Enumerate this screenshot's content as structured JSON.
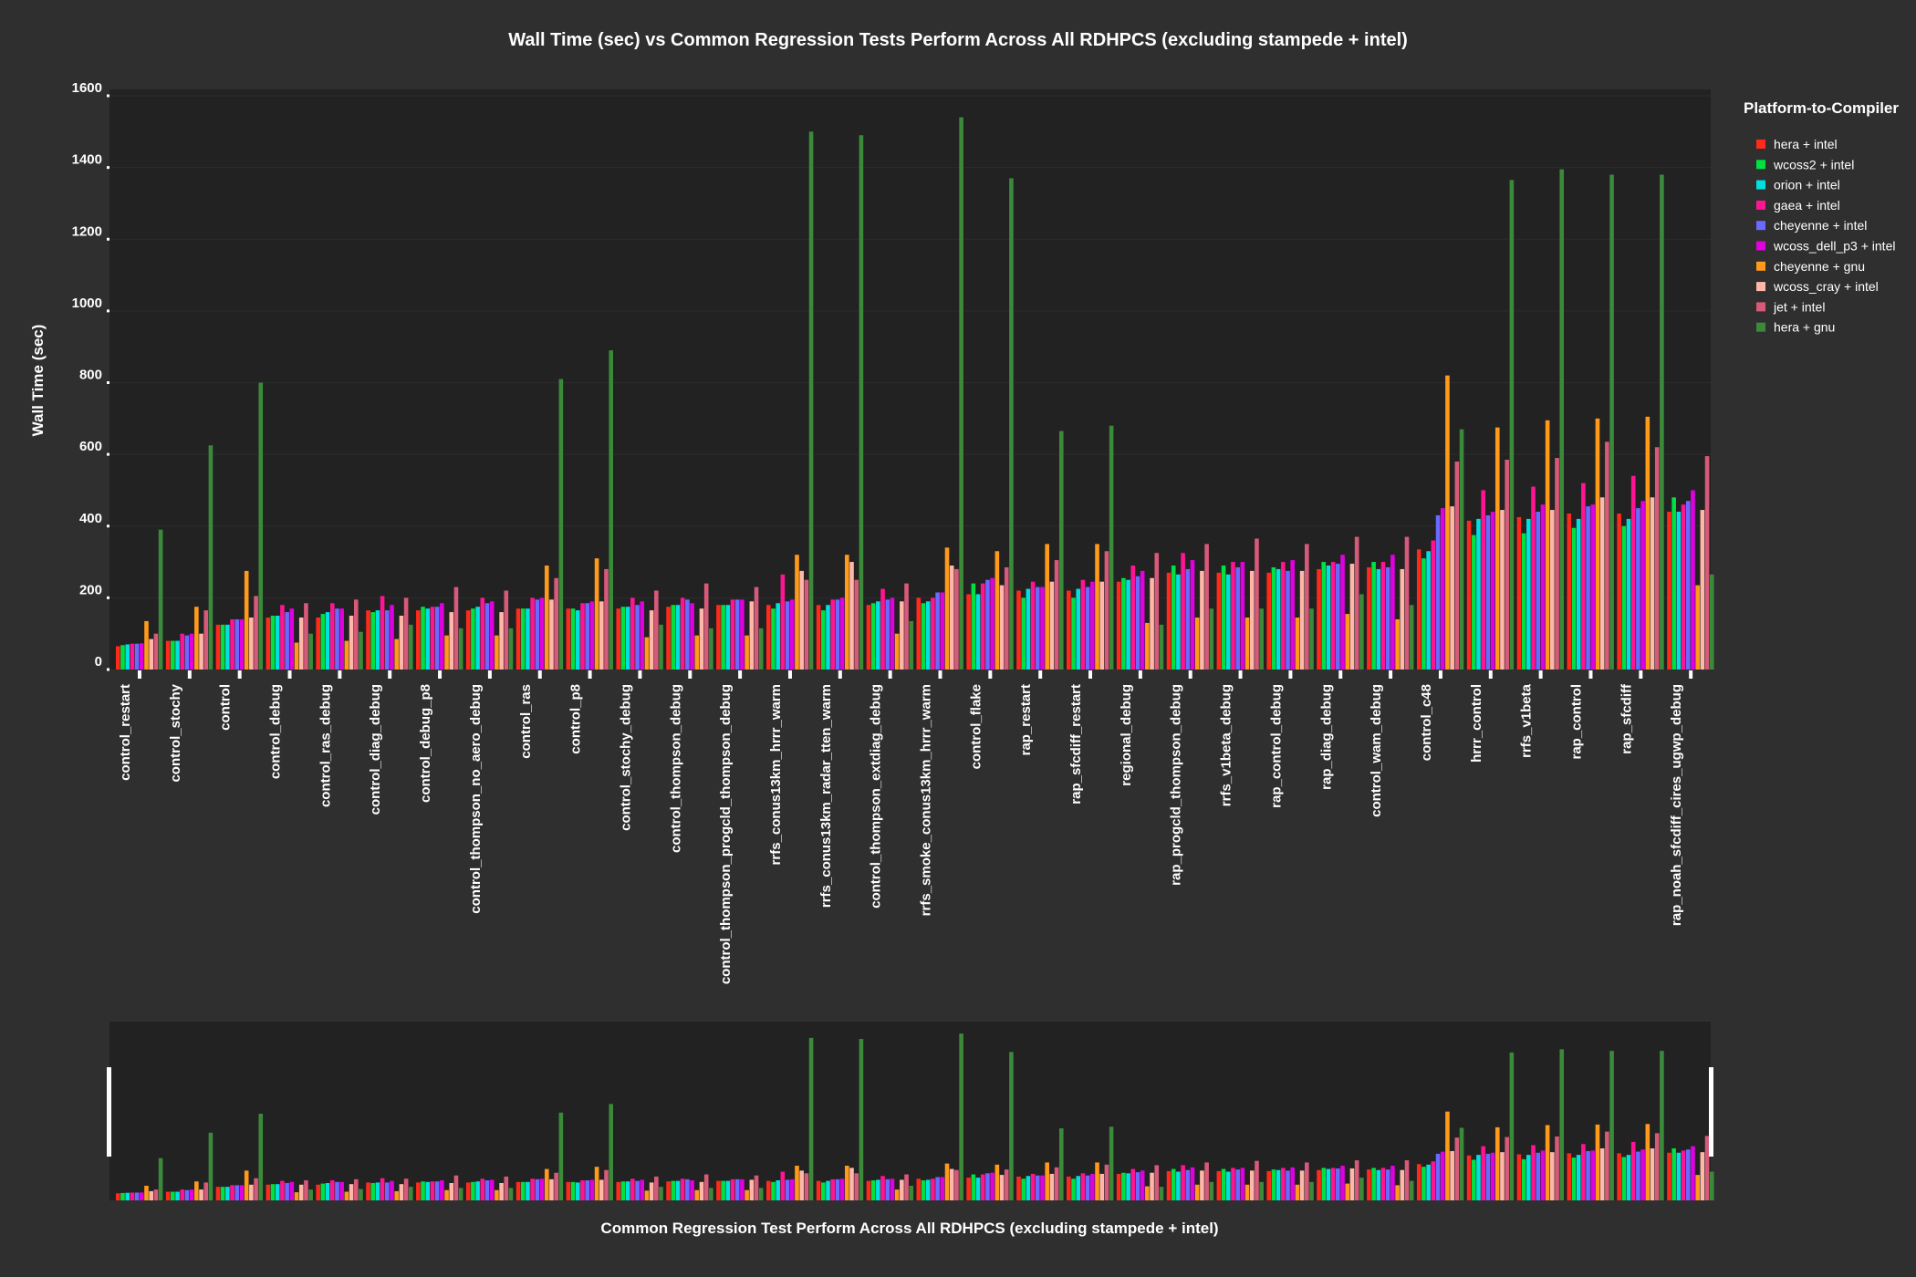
{
  "chart_data": {
    "type": "bar",
    "title": "Wall Time (sec) vs Common Regression Tests Perform Across All RDHPCS (excluding stampede + intel)",
    "ylabel": "Wall Time (sec)",
    "xlabel": "Common Regression Test Perform Across All RDHPCS (excluding stampede + intel)",
    "ylim": [
      0,
      1600
    ],
    "yticks": [
      "0",
      "200",
      "400",
      "600",
      "800",
      "1000",
      "1200",
      "1400",
      "1600"
    ],
    "grid": true,
    "legend": {
      "title": "Platform-to-Compiler",
      "position": "right"
    },
    "categories": [
      "control_restart",
      "control_stochy",
      "control",
      "control_debug",
      "control_ras_debug",
      "control_diag_debug",
      "control_debug_p8",
      "control_thompson_no_aero_debug",
      "control_ras",
      "control_p8",
      "control_stochy_debug",
      "control_thompson_debug",
      "control_thompson_progcld_thompson_debug",
      "rrfs_conus13km_hrrr_warm",
      "rrfs_conus13km_radar_tten_warm",
      "control_thompson_extdiag_debug",
      "rrfs_smoke_conus13km_hrrr_warm",
      "control_flake",
      "rap_restart",
      "rap_sfcdiff_restart",
      "regional_debug",
      "rap_progcld_thompson_debug",
      "rrfs_v1beta_debug",
      "rap_control_debug",
      "rap_diag_debug",
      "control_wam_debug",
      "control_c48",
      "hrrr_control",
      "rrfs_v1beta",
      "rap_control",
      "rap_sfcdiff",
      "rap_noah_sfcdiff_cires_ugwp_debug"
    ],
    "series": [
      {
        "name": "hera + intel",
        "color": "#ff2a1a",
        "values": [
          65,
          80,
          125,
          145,
          145,
          165,
          165,
          165,
          170,
          170,
          170,
          175,
          180,
          180,
          180,
          180,
          200,
          210,
          220,
          220,
          245,
          270,
          270,
          270,
          280,
          285,
          335,
          415,
          425,
          435,
          435,
          440
        ]
      },
      {
        "name": "wcoss2 + intel",
        "color": "#00e040",
        "values": [
          68,
          80,
          125,
          150,
          155,
          160,
          175,
          170,
          170,
          170,
          175,
          180,
          180,
          170,
          165,
          185,
          185,
          240,
          200,
          200,
          255,
          290,
          290,
          285,
          300,
          300,
          310,
          375,
          380,
          395,
          400,
          480
        ]
      },
      {
        "name": "orion + intel",
        "color": "#00e0e0",
        "values": [
          70,
          80,
          125,
          150,
          160,
          165,
          170,
          175,
          170,
          165,
          175,
          180,
          180,
          185,
          180,
          190,
          190,
          210,
          225,
          225,
          250,
          265,
          265,
          280,
          290,
          280,
          330,
          420,
          420,
          420,
          420,
          440
        ]
      },
      {
        "name": "gaea + intel",
        "color": "#ff1493",
        "values": [
          72,
          100,
          140,
          180,
          185,
          205,
          175,
          200,
          200,
          185,
          200,
          200,
          195,
          265,
          195,
          225,
          200,
          240,
          245,
          250,
          290,
          325,
          300,
          300,
          300,
          300,
          360,
          500,
          510,
          520,
          540,
          460
        ]
      },
      {
        "name": "cheyenne + intel",
        "color": "#6a6aff",
        "values": [
          72,
          95,
          140,
          160,
          170,
          165,
          175,
          185,
          195,
          185,
          180,
          195,
          195,
          190,
          195,
          195,
          215,
          250,
          230,
          230,
          260,
          280,
          285,
          275,
          295,
          285,
          430,
          430,
          440,
          455,
          450,
          470
        ]
      },
      {
        "name": "wcoss_dell_p3 + intel",
        "color": "#e000e0",
        "values": [
          73,
          100,
          140,
          170,
          170,
          180,
          185,
          190,
          200,
          190,
          190,
          185,
          195,
          195,
          200,
          200,
          215,
          255,
          230,
          245,
          275,
          305,
          300,
          305,
          320,
          320,
          450,
          440,
          460,
          460,
          470,
          500
        ]
      },
      {
        "name": "cheyenne + gnu",
        "color": "#ff9a1a",
        "values": [
          135,
          175,
          275,
          75,
          80,
          85,
          95,
          95,
          290,
          310,
          90,
          95,
          95,
          320,
          320,
          100,
          340,
          330,
          350,
          350,
          130,
          145,
          145,
          145,
          155,
          140,
          820,
          675,
          695,
          700,
          705,
          235
        ]
      },
      {
        "name": "wcoss_cray + intel",
        "color": "#ffb8a8",
        "values": [
          85,
          100,
          145,
          145,
          150,
          150,
          160,
          160,
          195,
          190,
          165,
          170,
          190,
          275,
          300,
          190,
          290,
          235,
          245,
          245,
          255,
          275,
          275,
          275,
          295,
          280,
          455,
          445,
          445,
          480,
          480,
          445
        ]
      },
      {
        "name": "jet + intel",
        "color": "#d85a7a",
        "values": [
          100,
          165,
          205,
          185,
          195,
          200,
          230,
          220,
          255,
          280,
          220,
          240,
          230,
          250,
          250,
          240,
          280,
          285,
          305,
          330,
          325,
          350,
          365,
          350,
          370,
          370,
          580,
          585,
          590,
          635,
          620,
          595
        ]
      },
      {
        "name": "hera + gnu",
        "color": "#3a8a3a",
        "values": [
          390,
          625,
          800,
          100,
          105,
          125,
          115,
          115,
          810,
          890,
          125,
          115,
          115,
          1500,
          1490,
          135,
          1540,
          1370,
          665,
          680,
          125,
          170,
          170,
          170,
          210,
          180,
          670,
          1365,
          1395,
          1380,
          1380,
          265
        ]
      }
    ]
  }
}
